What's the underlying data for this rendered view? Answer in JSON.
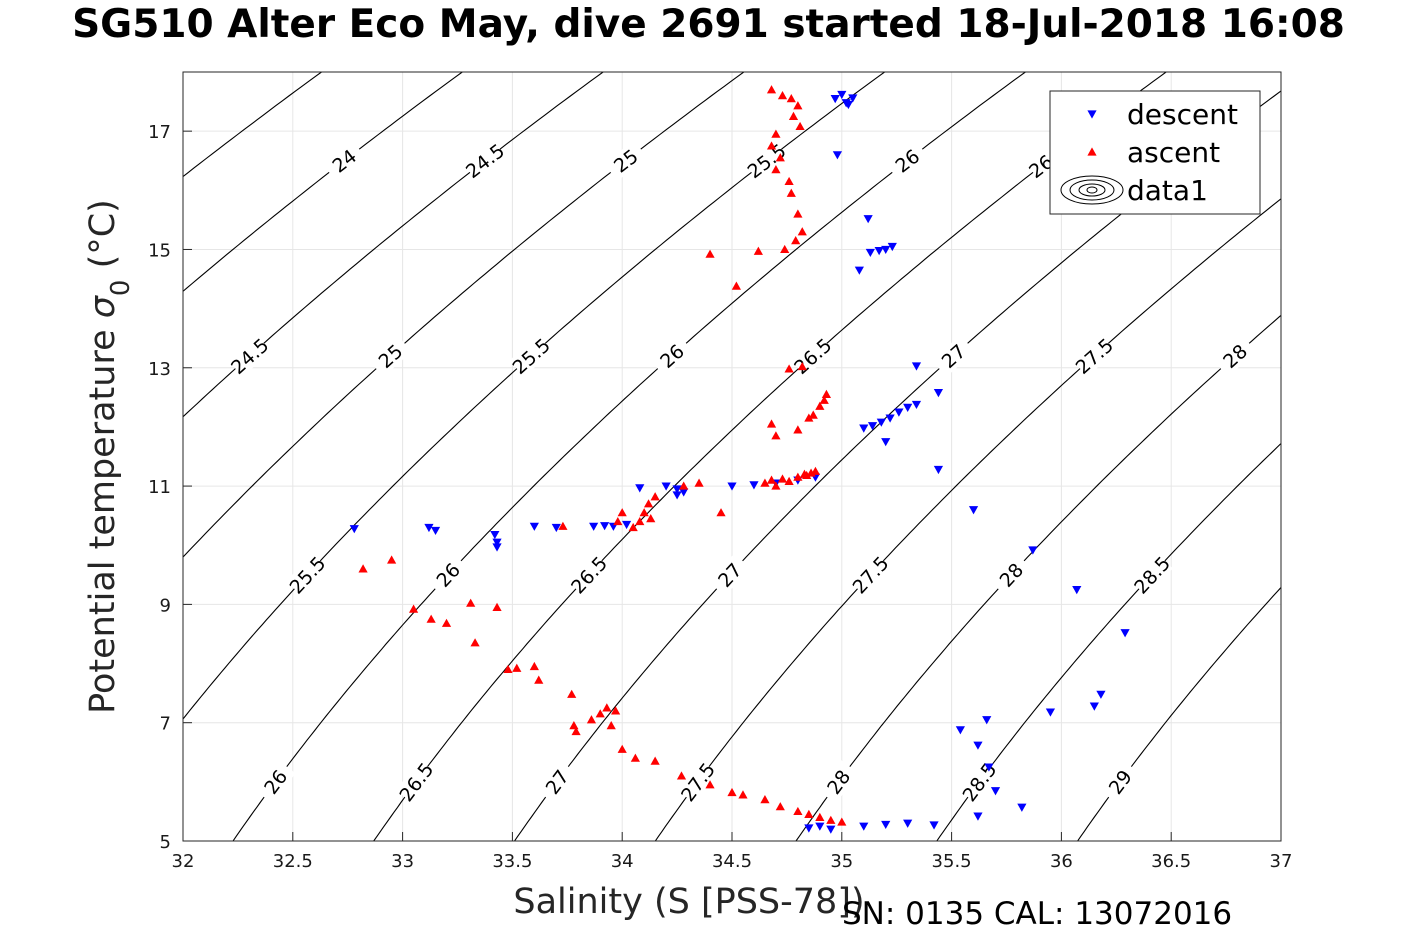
{
  "chart_data": {
    "type": "scatter",
    "title": "SG510 Alter Eco May, dive 2691 started 18-Jul-2018 16:08",
    "xlabel": "Salinity (S [PSS-78])",
    "ylabel_main": "Potential temperature ",
    "ylabel_symbol": "σ",
    "ylabel_sub": "0",
    "ylabel_unit": " (°C)",
    "xlim": [
      32,
      37
    ],
    "ylim": [
      5,
      18
    ],
    "x_ticks": [
      "32",
      "32.5",
      "33",
      "33.5",
      "34",
      "34.5",
      "35",
      "35.5",
      "36",
      "36.5",
      "37"
    ],
    "y_ticks": [
      "5",
      "7",
      "9",
      "11",
      "13",
      "15",
      "17"
    ],
    "grid": true,
    "legend_position": "top-right",
    "legend": [
      "descent",
      "ascent",
      "data1"
    ],
    "colors": {
      "descent": "#0000ff",
      "ascent": "#ff0000",
      "contour": "#000000"
    },
    "contour_levels": [
      "23.5",
      "24",
      "24.5",
      "25",
      "25.5",
      "26",
      "26.5",
      "27",
      "27.5",
      "28",
      "28.5",
      "29"
    ],
    "series": [
      {
        "name": "descent",
        "marker": "triangle-down",
        "points": [
          [
            32.78,
            10.28
          ],
          [
            33.12,
            10.3
          ],
          [
            33.15,
            10.25
          ],
          [
            33.42,
            10.18
          ],
          [
            33.43,
            10.05
          ],
          [
            33.43,
            9.97
          ],
          [
            33.6,
            10.32
          ],
          [
            33.7,
            10.3
          ],
          [
            33.87,
            10.32
          ],
          [
            33.92,
            10.33
          ],
          [
            33.96,
            10.32
          ],
          [
            34.02,
            10.35
          ],
          [
            34.08,
            10.97
          ],
          [
            34.2,
            11.0
          ],
          [
            34.25,
            10.95
          ],
          [
            34.28,
            10.9
          ],
          [
            34.25,
            10.85
          ],
          [
            34.5,
            11.0
          ],
          [
            34.6,
            11.02
          ],
          [
            34.7,
            11.05
          ],
          [
            34.8,
            11.1
          ],
          [
            34.88,
            11.15
          ],
          [
            34.97,
            17.55
          ],
          [
            35.0,
            17.62
          ],
          [
            35.02,
            17.48
          ],
          [
            35.05,
            17.56
          ],
          [
            35.03,
            17.45
          ],
          [
            34.98,
            16.6
          ],
          [
            35.12,
            15.52
          ],
          [
            35.08,
            14.65
          ],
          [
            35.13,
            14.95
          ],
          [
            35.17,
            14.98
          ],
          [
            35.2,
            15.0
          ],
          [
            35.23,
            15.05
          ],
          [
            35.1,
            11.98
          ],
          [
            35.14,
            12.02
          ],
          [
            35.18,
            12.08
          ],
          [
            35.22,
            12.15
          ],
          [
            35.26,
            12.25
          ],
          [
            35.3,
            12.33
          ],
          [
            35.34,
            12.38
          ],
          [
            35.44,
            12.58
          ],
          [
            35.34,
            13.03
          ],
          [
            35.2,
            11.75
          ],
          [
            35.44,
            11.28
          ],
          [
            35.6,
            10.6
          ],
          [
            35.87,
            9.92
          ],
          [
            36.07,
            9.25
          ],
          [
            36.29,
            8.52
          ],
          [
            36.18,
            7.48
          ],
          [
            36.15,
            7.28
          ],
          [
            35.95,
            7.18
          ],
          [
            35.54,
            6.88
          ],
          [
            35.62,
            6.62
          ],
          [
            35.66,
            7.05
          ],
          [
            35.67,
            6.25
          ],
          [
            35.7,
            5.85
          ],
          [
            35.82,
            5.57
          ],
          [
            35.62,
            5.42
          ],
          [
            34.85,
            5.22
          ],
          [
            34.9,
            5.25
          ],
          [
            34.95,
            5.2
          ],
          [
            35.1,
            5.25
          ],
          [
            35.2,
            5.28
          ],
          [
            35.3,
            5.3
          ],
          [
            35.42,
            5.27
          ]
        ]
      },
      {
        "name": "ascent",
        "marker": "triangle-up",
        "points": [
          [
            34.68,
            17.7
          ],
          [
            34.73,
            17.6
          ],
          [
            34.77,
            17.55
          ],
          [
            34.8,
            17.43
          ],
          [
            34.78,
            17.25
          ],
          [
            34.81,
            17.08
          ],
          [
            34.7,
            16.95
          ],
          [
            34.68,
            16.75
          ],
          [
            34.72,
            16.55
          ],
          [
            34.7,
            16.35
          ],
          [
            34.76,
            16.15
          ],
          [
            34.77,
            15.95
          ],
          [
            34.8,
            15.6
          ],
          [
            34.82,
            15.3
          ],
          [
            34.79,
            15.15
          ],
          [
            34.74,
            15.0
          ],
          [
            34.62,
            14.97
          ],
          [
            34.4,
            14.92
          ],
          [
            34.52,
            14.38
          ],
          [
            34.76,
            12.98
          ],
          [
            34.82,
            13.02
          ],
          [
            34.85,
            12.15
          ],
          [
            34.9,
            12.35
          ],
          [
            34.93,
            12.55
          ],
          [
            34.87,
            12.2
          ],
          [
            34.92,
            12.45
          ],
          [
            34.68,
            12.05
          ],
          [
            34.7,
            11.85
          ],
          [
            34.8,
            11.95
          ],
          [
            34.65,
            11.05
          ],
          [
            34.68,
            11.1
          ],
          [
            34.7,
            11.0
          ],
          [
            34.73,
            11.12
          ],
          [
            34.76,
            11.08
          ],
          [
            34.8,
            11.15
          ],
          [
            34.83,
            11.2
          ],
          [
            34.86,
            11.22
          ],
          [
            34.88,
            11.25
          ],
          [
            34.84,
            11.18
          ],
          [
            34.45,
            10.55
          ],
          [
            34.35,
            11.05
          ],
          [
            34.28,
            11.0
          ],
          [
            34.15,
            10.82
          ],
          [
            34.12,
            10.7
          ],
          [
            34.1,
            10.55
          ],
          [
            34.13,
            10.45
          ],
          [
            34.08,
            10.4
          ],
          [
            34.05,
            10.3
          ],
          [
            34.0,
            10.55
          ],
          [
            33.98,
            10.4
          ],
          [
            33.73,
            10.32
          ],
          [
            32.82,
            9.6
          ],
          [
            32.95,
            9.75
          ],
          [
            33.05,
            8.92
          ],
          [
            33.13,
            8.75
          ],
          [
            33.2,
            8.68
          ],
          [
            33.31,
            9.02
          ],
          [
            33.43,
            8.95
          ],
          [
            33.33,
            8.35
          ],
          [
            33.48,
            7.9
          ],
          [
            33.52,
            7.92
          ],
          [
            33.6,
            7.95
          ],
          [
            33.62,
            7.72
          ],
          [
            33.77,
            7.48
          ],
          [
            33.78,
            6.95
          ],
          [
            33.79,
            6.85
          ],
          [
            33.86,
            7.05
          ],
          [
            33.9,
            7.15
          ],
          [
            33.93,
            7.25
          ],
          [
            33.97,
            7.2
          ],
          [
            33.95,
            6.95
          ],
          [
            34.0,
            6.55
          ],
          [
            34.06,
            6.4
          ],
          [
            34.15,
            6.35
          ],
          [
            34.27,
            6.1
          ],
          [
            34.4,
            5.95
          ],
          [
            34.5,
            5.82
          ],
          [
            34.55,
            5.78
          ],
          [
            34.65,
            5.7
          ],
          [
            34.72,
            5.58
          ],
          [
            34.8,
            5.5
          ],
          [
            34.85,
            5.45
          ],
          [
            34.9,
            5.4
          ],
          [
            34.95,
            5.35
          ],
          [
            35.0,
            5.32
          ]
        ]
      }
    ]
  },
  "footer": {
    "text": "SN: 0135  CAL: 13072016"
  }
}
